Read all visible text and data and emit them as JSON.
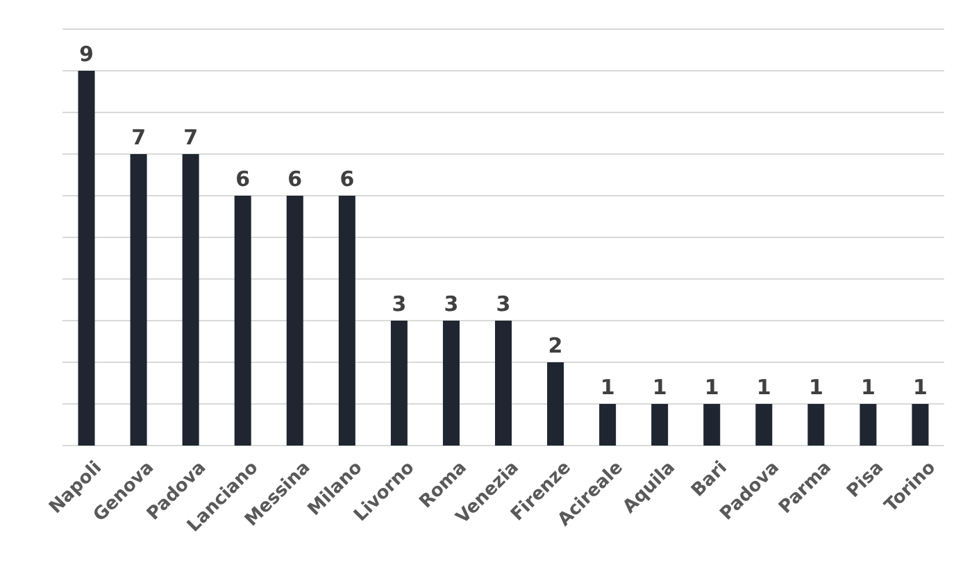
{
  "chart_data": {
    "type": "bar",
    "categories": [
      "Napoli",
      "Genova",
      "Padova",
      "Lanciano",
      "Messina",
      "Milano",
      "Livorno",
      "Roma",
      "Venezia",
      "Firenze",
      "Acireale",
      "Aquila",
      "Bari",
      "Padova",
      "Parma",
      "Pisa",
      "Torino"
    ],
    "values": [
      9,
      7,
      7,
      6,
      6,
      6,
      3,
      3,
      3,
      2,
      1,
      1,
      1,
      1,
      1,
      1,
      1
    ],
    "color": "#1f2631",
    "data_labels": true,
    "grid": "y",
    "tick_labels": "x",
    "ylim": [
      0,
      10
    ],
    "yticks": [
      {
        "value": 0,
        "label": null
      },
      {
        "value": 1,
        "label": null
      },
      {
        "value": 2,
        "label": null
      },
      {
        "value": 3,
        "label": null
      },
      {
        "value": 4,
        "label": null
      },
      {
        "value": 5,
        "label": null
      },
      {
        "value": 6,
        "label": null
      },
      {
        "value": 7,
        "label": null
      },
      {
        "value": 8,
        "label": null
      },
      {
        "value": 9,
        "label": null
      },
      {
        "value": 10,
        "label": null
      }
    ]
  }
}
